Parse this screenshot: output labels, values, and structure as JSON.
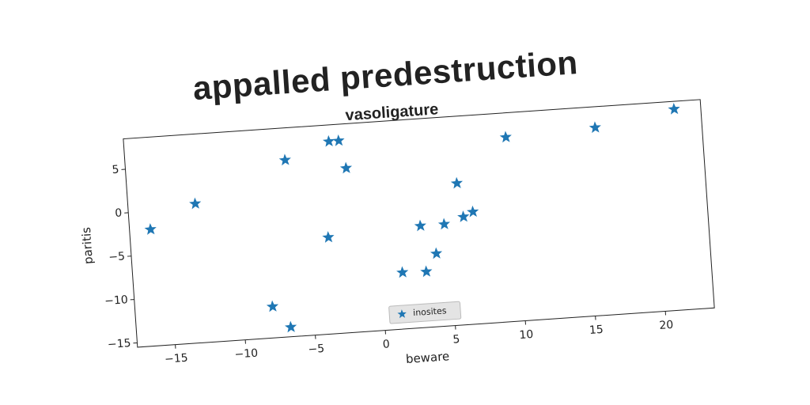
{
  "chart_data": {
    "type": "scatter",
    "title": "appalled predestruction",
    "subtitle": "vasoligature",
    "x_label": "beware",
    "y_label": "paritis",
    "series": [
      {
        "name": "inosites",
        "color": "#1f77b4",
        "x": [
          -16.2,
          -12.9,
          -6.3,
          -3.1,
          -2.4,
          -2.0,
          -3.6,
          -7.9,
          -6.7,
          1.5,
          3.2,
          4.0,
          3.0,
          4.7,
          5.8,
          6.1,
          6.8,
          9.5,
          15.9,
          21.6
        ],
        "values": [
          -2.1,
          0.5,
          4.8,
          6.6,
          6.6,
          3.4,
          -4.4,
          -11.9,
          -14.4,
          -9.0,
          -9.1,
          -7.1,
          -3.8,
          -3.8,
          0.8,
          -3.1,
          -2.6,
          5.7,
          6.1,
          7.6
        ]
      }
    ],
    "xlim": [
      -17.7,
      23.5
    ],
    "ylim": [
      -15.5,
      8.5
    ],
    "xticks": [
      {
        "value": -15,
        "label": "−15"
      },
      {
        "value": -10,
        "label": "−10"
      },
      {
        "value": -5,
        "label": "−5"
      },
      0,
      5,
      10,
      15,
      20
    ],
    "yticks": [
      {
        "value": -15,
        "label": "−15"
      },
      {
        "value": -10,
        "label": "−10"
      },
      {
        "value": -5,
        "label": "−5"
      },
      0,
      5
    ],
    "legend": "lower center",
    "rotation": -3.9
  }
}
